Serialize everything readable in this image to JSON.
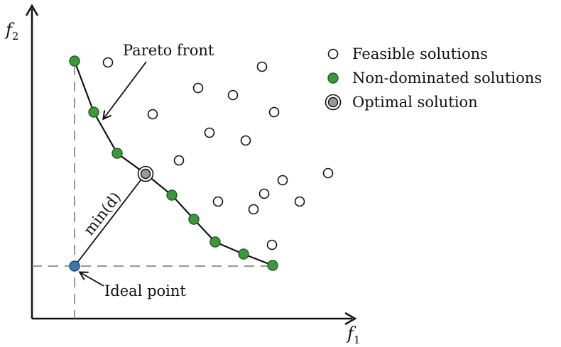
{
  "axes": {
    "x_label_main": "f",
    "x_label_sub": "1",
    "y_label_main": "f",
    "y_label_sub": "2"
  },
  "annotations": {
    "pareto_front": "Pareto front",
    "min_d": "min(d)",
    "ideal_point": "Ideal point"
  },
  "legend": {
    "feasible": "Feasible solutions",
    "non_dominated": "Non-dominated solutions",
    "optimal": "Optimal solution"
  },
  "colors": {
    "non_dominated_fill": "#3a9a3a",
    "ideal_fill": "#3a78b0",
    "line": "#111111",
    "dashed": "#777777"
  }
}
